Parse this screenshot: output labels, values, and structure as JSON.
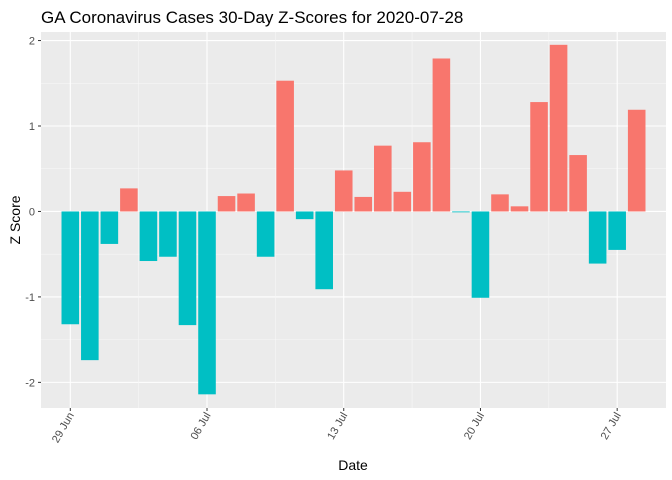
{
  "chart_data": {
    "type": "bar",
    "title": "GA Coronavirus Cases 30-Day Z-Scores for 2020-07-28",
    "xlabel": "Date",
    "ylabel": "Z Score",
    "x_tick_labels": [
      "29 Jun",
      "06 Jul",
      "13 Jul",
      "20 Jul",
      "27 Jul"
    ],
    "y_ticks": [
      -2,
      -1,
      0,
      1,
      2
    ],
    "ylim": [
      -2.3,
      2.1
    ],
    "grid": true,
    "legend": "none",
    "colors": {
      "positive": "#F8766D",
      "negative": "#00BFC4",
      "panel": "#EBEBEB",
      "grid_major": "#FFFFFF"
    },
    "dates": [
      "2020-06-29",
      "2020-06-30",
      "2020-07-01",
      "2020-07-02",
      "2020-07-03",
      "2020-07-04",
      "2020-07-05",
      "2020-07-06",
      "2020-07-07",
      "2020-07-08",
      "2020-07-09",
      "2020-07-10",
      "2020-07-11",
      "2020-07-12",
      "2020-07-13",
      "2020-07-14",
      "2020-07-15",
      "2020-07-16",
      "2020-07-17",
      "2020-07-18",
      "2020-07-19",
      "2020-07-20",
      "2020-07-21",
      "2020-07-22",
      "2020-07-23",
      "2020-07-24",
      "2020-07-25",
      "2020-07-26",
      "2020-07-27",
      "2020-07-28"
    ],
    "values": [
      -1.32,
      -1.74,
      -0.38,
      0.27,
      -0.58,
      -0.53,
      -1.33,
      -2.14,
      0.18,
      0.21,
      -0.53,
      1.53,
      -0.09,
      -0.91,
      0.48,
      0.17,
      0.77,
      0.23,
      0.81,
      1.79,
      -0.01,
      -1.01,
      0.2,
      0.06,
      1.28,
      1.95,
      0.66,
      -0.61,
      -0.45,
      1.19
    ]
  }
}
